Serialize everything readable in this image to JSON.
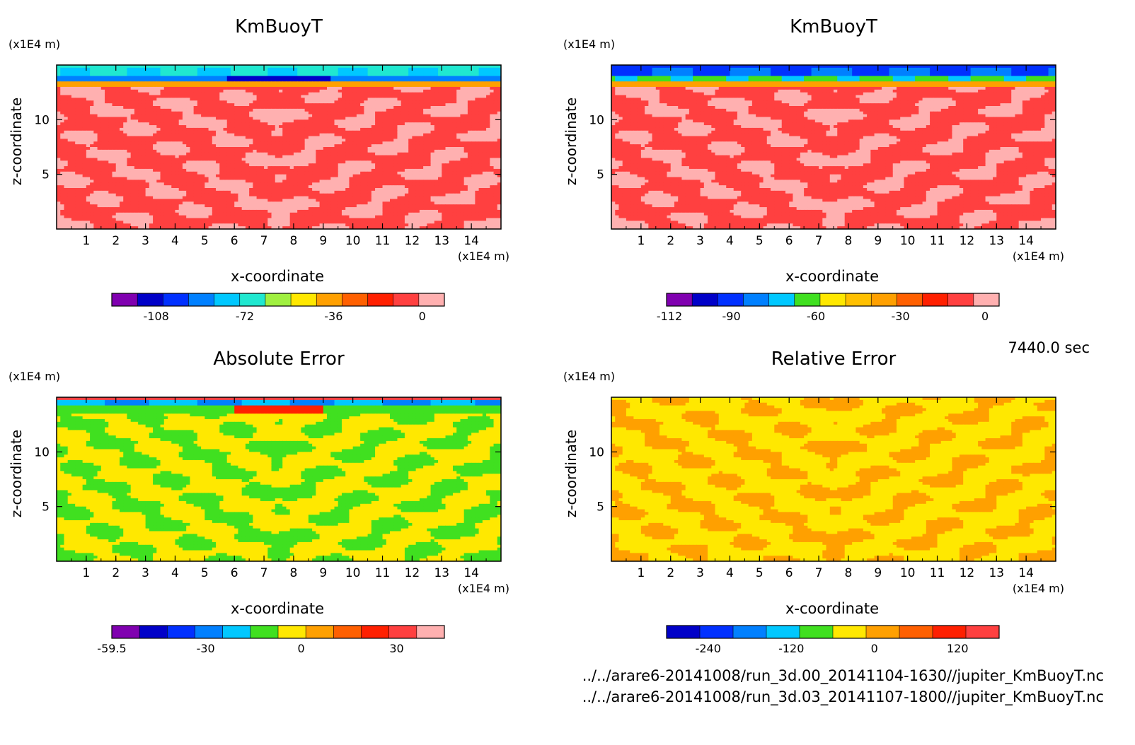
{
  "time_label": "7440.0 sec",
  "files": [
    "../../arare6-20141008/run_3d.00_20141104-1630//jupiter_KmBuoyT.nc",
    "../../arare6-20141008/run_3d.03_20141107-1800//jupiter_KmBuoyT.nc"
  ],
  "chart_data": [
    {
      "type": "heatmap",
      "title": "KmBuoyT",
      "xlabel": "x-coordinate",
      "ylabel": "z-coordinate",
      "x_unit": "(x1E4 m)",
      "y_unit": "(x1E4 m)",
      "xlim": [
        0,
        15
      ],
      "ylim": [
        0,
        15
      ],
      "x_ticks": [
        1,
        2,
        3,
        4,
        5,
        6,
        7,
        8,
        9,
        10,
        11,
        12,
        13,
        14
      ],
      "y_ticks": [
        5,
        10
      ],
      "colorbar": {
        "colors": [
          "#8000b0",
          "#0000c8",
          "#0030ff",
          "#0080ff",
          "#00c8ff",
          "#20e8d0",
          "#a0f040",
          "#ffe800",
          "#ffa000",
          "#ff6000",
          "#ff2000",
          "#ff4040",
          "#ffb0b0"
        ],
        "tick_values": [
          -108,
          -72,
          -36,
          0
        ],
        "range": [
          -126,
          9
        ]
      },
      "fill_pattern": "km1"
    },
    {
      "type": "heatmap",
      "title": "KmBuoyT",
      "xlabel": "x-coordinate",
      "ylabel": "z-coordinate",
      "x_unit": "(x1E4 m)",
      "y_unit": "(x1E4 m)",
      "xlim": [
        0,
        15
      ],
      "ylim": [
        0,
        15
      ],
      "x_ticks": [
        1,
        2,
        3,
        4,
        5,
        6,
        7,
        8,
        9,
        10,
        11,
        12,
        13,
        14
      ],
      "y_ticks": [
        5,
        10
      ],
      "colorbar": {
        "colors": [
          "#8000b0",
          "#0000c8",
          "#0030ff",
          "#0080ff",
          "#00c8ff",
          "#40e020",
          "#ffe800",
          "#ffc000",
          "#ffa000",
          "#ff6000",
          "#ff2000",
          "#ff4040",
          "#ffb0b0"
        ],
        "tick_values": [
          -112,
          -90,
          -60,
          -30,
          0
        ],
        "range": [
          -113,
          5
        ]
      },
      "fill_pattern": "km2"
    },
    {
      "type": "heatmap",
      "title": "Absolute Error",
      "xlabel": "x-coordinate",
      "ylabel": "z-coordinate",
      "x_unit": "(x1E4 m)",
      "y_unit": "(x1E4 m)",
      "xlim": [
        0,
        15
      ],
      "ylim": [
        0,
        15
      ],
      "x_ticks": [
        1,
        2,
        3,
        4,
        5,
        6,
        7,
        8,
        9,
        10,
        11,
        12,
        13,
        14
      ],
      "y_ticks": [
        5,
        10
      ],
      "colorbar": {
        "colors": [
          "#8000b0",
          "#0000c8",
          "#0030ff",
          "#0080ff",
          "#00c8ff",
          "#40e020",
          "#ffe800",
          "#ffa000",
          "#ff6000",
          "#ff2000",
          "#ff4040",
          "#ffb0b0"
        ],
        "tick_values": [
          -59.5,
          -30,
          0,
          30
        ],
        "range": [
          -59.5,
          45
        ]
      },
      "fill_pattern": "abs"
    },
    {
      "type": "heatmap",
      "title": "Relative Error",
      "xlabel": "x-coordinate",
      "ylabel": "z-coordinate",
      "x_unit": "(x1E4 m)",
      "y_unit": "(x1E4 m)",
      "xlim": [
        0,
        15
      ],
      "ylim": [
        0,
        15
      ],
      "x_ticks": [
        1,
        2,
        3,
        4,
        5,
        6,
        7,
        8,
        9,
        10,
        11,
        12,
        13,
        14
      ],
      "y_ticks": [
        5,
        10
      ],
      "colorbar": {
        "colors": [
          "#0000c8",
          "#0030ff",
          "#0080ff",
          "#00c8ff",
          "#40e020",
          "#ffe800",
          "#ffa000",
          "#ff6000",
          "#ff2000",
          "#ff4040"
        ],
        "tick_values": [
          -240,
          -120,
          0,
          120
        ],
        "range": [
          -300,
          180
        ]
      },
      "fill_pattern": "rel"
    }
  ]
}
